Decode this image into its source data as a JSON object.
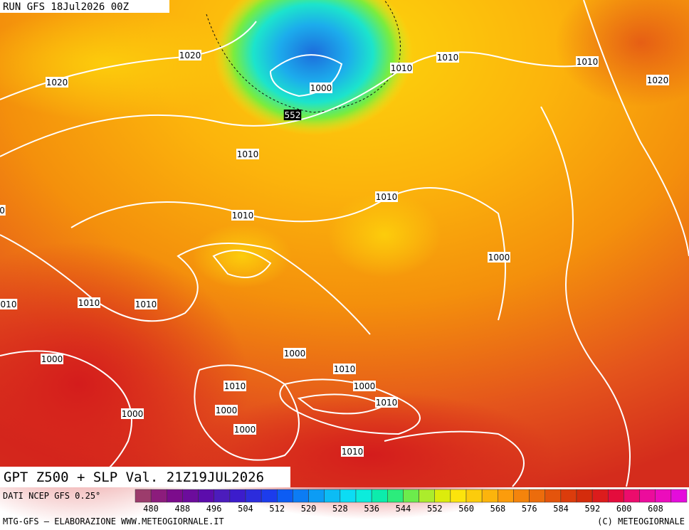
{
  "header": {
    "run": "RUN GFS 18Jul2026 00Z"
  },
  "map": {
    "isobar_labels": [
      "1020",
      "1020",
      "1010",
      "1010",
      "1010",
      "1020",
      "1000",
      "552",
      "1010",
      "1010",
      "0",
      "1010",
      "1000",
      "010",
      "1010",
      "1010",
      "1000",
      "1000",
      "1010",
      "1010",
      "1000",
      "1010",
      "1000",
      "1000",
      "1000",
      "1010"
    ]
  },
  "footer": {
    "title": "GPT Z500 + SLP Val. 21Z19JUL2026",
    "source": "DATI NCEP GFS 0.25°",
    "credit": "MTG-GFS — ELABORAZIONE WWW.METEOGIORNALE.IT",
    "copyright": "(C) METEOGIORNALE"
  },
  "colorbar": {
    "labels": [
      480,
      488,
      496,
      504,
      512,
      520,
      528,
      536,
      544,
      552,
      560,
      568,
      576,
      584,
      592,
      600,
      608
    ],
    "colors": [
      "#9c3c6c",
      "#8c1c7c",
      "#7c0c8c",
      "#6c0c9c",
      "#5c0cac",
      "#4c1cbc",
      "#3c1ccc",
      "#2c2cdc",
      "#1c3cec",
      "#0c5cf4",
      "#0c7cf4",
      "#0c9cf4",
      "#0cbcf4",
      "#0cdcf4",
      "#0cecdc",
      "#0cecac",
      "#2cec7c",
      "#6cec4c",
      "#acec2c",
      "#dcec0c",
      "#fce40c",
      "#fccc0c",
      "#fcb40c",
      "#fc9c0c",
      "#f4840c",
      "#ec6c0c",
      "#e4540c",
      "#dc3c0c",
      "#d42c0c",
      "#dc1c1c",
      "#e40c3c",
      "#ec0c6c",
      "#ec0c9c",
      "#ec0cbc",
      "#e40cdc"
    ]
  }
}
